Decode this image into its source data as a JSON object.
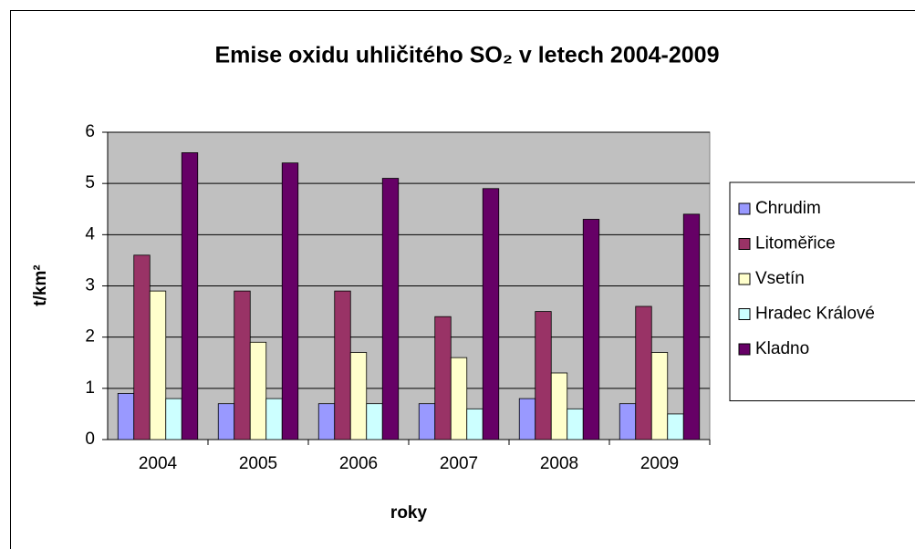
{
  "chart_data": {
    "type": "bar",
    "title": "Emise oxidu uhličitého SO₂ v letech 2004-2009",
    "x_label": "roky",
    "y_label": "t/km²",
    "categories": [
      "2004",
      "2005",
      "2006",
      "2007",
      "2008",
      "2009"
    ],
    "series": [
      {
        "name": "Chrudim",
        "color": "#9999ff",
        "values": [
          0.9,
          0.7,
          0.7,
          0.7,
          0.8,
          0.7
        ]
      },
      {
        "name": "Litoměřice",
        "color": "#993366",
        "values": [
          3.6,
          2.9,
          2.9,
          2.4,
          2.5,
          2.6
        ]
      },
      {
        "name": "Vsetín",
        "color": "#ffffcc",
        "values": [
          2.9,
          1.9,
          1.7,
          1.6,
          1.3,
          1.7
        ]
      },
      {
        "name": "Hradec Králové",
        "color": "#ccffff",
        "values": [
          0.8,
          0.8,
          0.7,
          0.6,
          0.6,
          0.5
        ]
      },
      {
        "name": "Kladno",
        "color": "#660066",
        "values": [
          5.6,
          5.4,
          5.1,
          4.9,
          4.3,
          4.4
        ]
      }
    ],
    "ylim": [
      0,
      6
    ],
    "yticks": [
      0,
      1,
      2,
      3,
      4,
      5,
      6
    ],
    "grid": true,
    "legend": "right"
  }
}
